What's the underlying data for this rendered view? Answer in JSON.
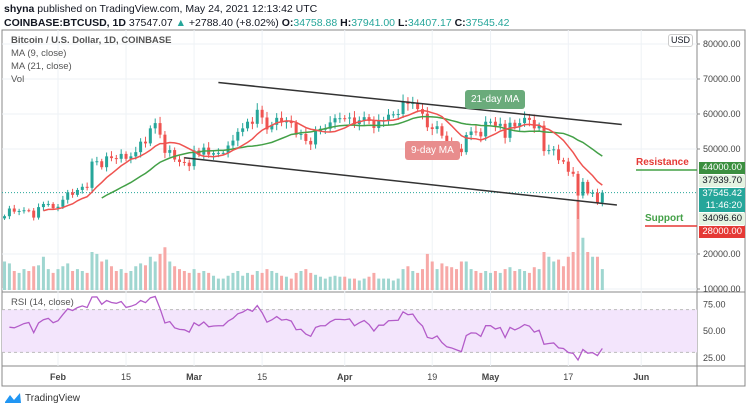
{
  "header": {
    "publisher": "shyna",
    "published": "published on TradingView.com, May 24, 2021 12:13:42 UTC",
    "symbol": "COINBASE:BTCUSD, 1D",
    "last": "37547.07",
    "change": "+2788.40 (+8.02%)",
    "o_label": "O:",
    "o": "34758.88",
    "h_label": "H:",
    "h": "37941.00",
    "l_label": "L:",
    "l": "34407.17",
    "c_label": "C:",
    "c": "37545.42"
  },
  "legend": {
    "title": "Bitcoin / U.S. Dollar, 1D, COINBASE",
    "ma9": "MA (9, close)",
    "ma21": "MA (21, close)",
    "vol": "Vol",
    "rsi": "RSI (14, close)"
  },
  "colors": {
    "up": "#26a69a",
    "down": "#ef5350",
    "ma9": "#ef5350",
    "ma21": "#43a047",
    "rsi": "#b35cc9",
    "rsi_band": "#f3e5fc"
  },
  "annotations": {
    "ma21": "21-day MA",
    "ma9": "9-day MA",
    "resistance": "Resistance",
    "support": "Support"
  },
  "price_tags": {
    "resistance": "44000.00",
    "high": "37939.70",
    "last": "37545.42",
    "countdown": "11:46:20",
    "low": "34096.60",
    "support": "28000.00"
  },
  "currency": "USD",
  "footer": {
    "brand": "TradingView"
  },
  "chart_data": {
    "type": "candlestick",
    "start_date": "2021-01-21",
    "interval": "1D",
    "price_axis": {
      "ticks": [
        10000,
        20000,
        50000,
        60000,
        70000,
        80000
      ],
      "labels": [
        "10000.00",
        "20000.00",
        "50000.00",
        "60000.00",
        "70000.00",
        "80000.00"
      ]
    },
    "rsi_axis": {
      "ticks": [
        25,
        50,
        75
      ],
      "labels": [
        "25.00",
        "50.00",
        "75.00"
      ],
      "band": [
        30,
        70
      ]
    },
    "time_axis": [
      {
        "label": "Feb",
        "date": "2021-02-01"
      },
      {
        "label": "15",
        "date": "2021-02-15"
      },
      {
        "label": "Mar",
        "date": "2021-03-01"
      },
      {
        "label": "15",
        "date": "2021-03-15"
      },
      {
        "label": "Apr",
        "date": "2021-04-01"
      },
      {
        "label": "19",
        "date": "2021-04-19"
      },
      {
        "label": "May",
        "date": "2021-05-01"
      },
      {
        "label": "17",
        "date": "2021-05-17"
      },
      {
        "label": "Jun",
        "date": "2021-06-01"
      }
    ],
    "closes": [
      30800,
      33000,
      32100,
      32300,
      32500,
      32400,
      30400,
      33400,
      34300,
      34300,
      33100,
      33500,
      35500,
      37600,
      36900,
      38300,
      39200,
      38900,
      46400,
      46500,
      44800,
      47900,
      47400,
      47200,
      48600,
      47200,
      47900,
      49100,
      52100,
      51600,
      55900,
      57400,
      54100,
      48900,
      49700,
      47000,
      46300,
      46100,
      45100,
      49600,
      48400,
      50400,
      48400,
      48800,
      48900,
      48900,
      51000,
      52400,
      54900,
      55900,
      57800,
      57200,
      61200,
      59000,
      55600,
      56900,
      58900,
      57600,
      58000,
      57400,
      54100,
      54300,
      52300,
      51300,
      55000,
      55800,
      55800,
      57600,
      58800,
      58800,
      58700,
      59000,
      57100,
      58200,
      59100,
      58000,
      56000,
      58100,
      58100,
      59800,
      59900,
      60000,
      63600,
      62900,
      63200,
      61400,
      60100,
      56200,
      55700,
      56500,
      53800,
      51700,
      51100,
      50100,
      49100,
      54000,
      55000,
      54900,
      53600,
      57800,
      57800,
      56600,
      57200,
      53200,
      57500,
      56400,
      57400,
      58900,
      58300,
      55900,
      56700,
      49400,
      49700,
      49900,
      46800,
      46400,
      43500,
      42900,
      36700,
      40600,
      37300,
      37500,
      34700,
      37545.42
    ],
    "volume_relative": [
      30,
      28,
      20,
      18,
      22,
      20,
      25,
      26,
      35,
      22,
      18,
      22,
      25,
      28,
      20,
      22,
      20,
      18,
      40,
      38,
      30,
      32,
      25,
      20,
      22,
      18,
      20,
      25,
      28,
      26,
      35,
      30,
      38,
      45,
      30,
      25,
      22,
      20,
      18,
      22,
      18,
      20,
      18,
      15,
      12,
      12,
      15,
      18,
      20,
      15,
      18,
      16,
      20,
      18,
      22,
      20,
      18,
      15,
      14,
      12,
      18,
      20,
      22,
      18,
      16,
      14,
      12,
      14,
      15,
      14,
      14,
      12,
      12,
      10,
      12,
      14,
      18,
      12,
      12,
      12,
      10,
      12,
      22,
      25,
      20,
      18,
      22,
      38,
      30,
      22,
      28,
      25,
      24,
      22,
      30,
      30,
      22,
      20,
      18,
      20,
      18,
      20,
      18,
      22,
      24,
      20,
      22,
      20,
      18,
      24,
      22,
      40,
      35,
      30,
      32,
      25,
      35,
      40,
      95,
      55,
      40,
      35,
      35,
      22
    ],
    "levels": {
      "resistance": 44000,
      "support": 28000
    },
    "trendlines": [
      {
        "from": [
          "2021-03-06",
          69000
        ],
        "to": [
          "2021-05-28",
          57000
        ]
      },
      {
        "from": [
          "2021-02-27",
          47500
        ],
        "to": [
          "2021-05-27",
          34000
        ]
      }
    ]
  }
}
